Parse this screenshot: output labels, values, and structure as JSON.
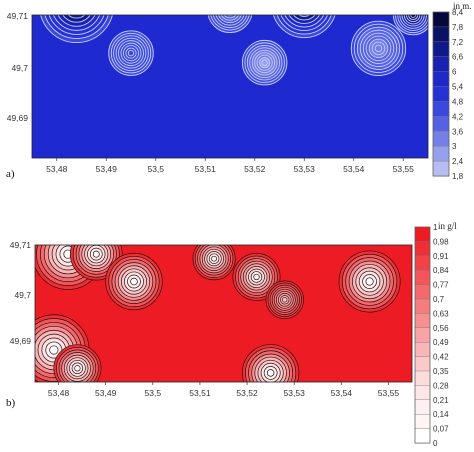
{
  "chart_data": [
    {
      "type": "heatmap",
      "panel_label": "a)",
      "unit_label": "in m.",
      "x_ticks": [
        "53,48",
        "53,49",
        "53,5",
        "53,51",
        "53,52",
        "53,53",
        "53,54",
        "53,55"
      ],
      "y_ticks": [
        "49,71",
        "49,7",
        "49,69"
      ],
      "colorbar_ticks": [
        "8,4",
        "7,8",
        "7,2",
        "6,6",
        "6",
        "5,4",
        "4,8",
        "4,2",
        "3,6",
        "3",
        "2,4",
        "1,8"
      ],
      "colorbar_colors": [
        "#05083a",
        "#0a1266",
        "#10198c",
        "#1821b0",
        "#1f29c8",
        "#2632d6",
        "#3a48de",
        "#5563e3",
        "#7580e6",
        "#97a0ec",
        "#b6bdf1",
        "#dadff8"
      ],
      "xlim": [
        53.475,
        53.555
      ],
      "ylim": [
        49.68,
        49.71
      ],
      "background_color": "#1f29d0",
      "features": [
        {
          "x": 53.484,
          "y": 49.712,
          "peak": 8.4,
          "r": 0.0075
        },
        {
          "x": 53.495,
          "y": 49.702,
          "peak": 4.8,
          "r": 0.0045
        },
        {
          "x": 53.515,
          "y": 49.711,
          "peak": 4.2,
          "r": 0.0045
        },
        {
          "x": 53.522,
          "y": 49.7,
          "peak": 3.0,
          "r": 0.0045
        },
        {
          "x": 53.53,
          "y": 49.712,
          "peak": 8.4,
          "r": 0.0065
        },
        {
          "x": 53.545,
          "y": 49.703,
          "peak": 3.6,
          "r": 0.0055
        },
        {
          "x": 53.552,
          "y": 49.71,
          "peak": 8.4,
          "r": 0.004
        }
      ]
    },
    {
      "type": "heatmap",
      "panel_label": "b)",
      "unit_label": "in g/l",
      "x_ticks": [
        "53,48",
        "53,49",
        "53,5",
        "53,51",
        "53,52",
        "53,53",
        "53,54",
        "53,55"
      ],
      "y_ticks": [
        "49,71",
        "49,7",
        "49,69"
      ],
      "colorbar_ticks": [
        "1",
        "0,98",
        "0,91",
        "0,84",
        "0,77",
        "0,7",
        "0,63",
        "0,56",
        "0,49",
        "0,42",
        "0,35",
        "0,28",
        "0,21",
        "0,14",
        "0,07",
        "0"
      ],
      "colorbar_colors": [
        "#ed1c24",
        "#ef2f34",
        "#f04247",
        "#f2565a",
        "#f4696c",
        "#f57c7f",
        "#f79093",
        "#f8a3a5",
        "#f9b6b8",
        "#fbc9ca",
        "#fcdcdd",
        "#fde6e7",
        "#feeff0",
        "#fff5f5",
        "#ffffff"
      ],
      "xlim": [
        53.475,
        53.555
      ],
      "ylim": [
        49.68,
        49.71
      ],
      "background_color": "#ed1c24",
      "features": [
        {
          "x": 53.482,
          "y": 49.708,
          "low": 0.0,
          "r": 0.0075
        },
        {
          "x": 53.488,
          "y": 49.708,
          "low": 0.0,
          "r": 0.0055
        },
        {
          "x": 53.496,
          "y": 49.702,
          "low": 0.0,
          "r": 0.006
        },
        {
          "x": 53.513,
          "y": 49.707,
          "low": 0.1,
          "r": 0.0045
        },
        {
          "x": 53.522,
          "y": 49.703,
          "low": 0.1,
          "r": 0.005
        },
        {
          "x": 53.528,
          "y": 49.698,
          "low": 0.35,
          "r": 0.004
        },
        {
          "x": 53.546,
          "y": 49.702,
          "low": 0.0,
          "r": 0.0065
        },
        {
          "x": 53.479,
          "y": 49.687,
          "low": 0.0,
          "r": 0.0075
        },
        {
          "x": 53.484,
          "y": 49.683,
          "low": 0.0,
          "r": 0.005
        },
        {
          "x": 53.525,
          "y": 49.682,
          "low": 0.0,
          "r": 0.006
        }
      ]
    }
  ]
}
